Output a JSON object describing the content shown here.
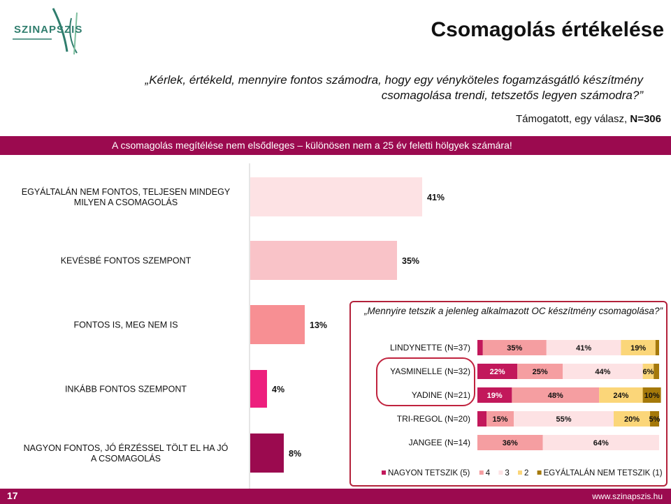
{
  "header": {
    "logo_text": "SZINAPSZIS",
    "title": "Csomagolás értékelése"
  },
  "question": {
    "line1": "„Kérlek, értékeld, mennyire fontos számodra, hogy egy vényköteles fogamzásgátló készítmény",
    "line2": "csomagolása trendi, tetszetős legyen számodra?”"
  },
  "support": {
    "prefix": "Támogatott, egy válasz,",
    "n": "N=306"
  },
  "banner": {
    "text": "A csomagolás megítélése nem elsődleges – különösen nem a 25 év feletti hölgyek számára!"
  },
  "chart_data": [
    {
      "type": "bar",
      "orientation": "horizontal",
      "categories": [
        "EGYÁLTALÁN NEM FONTOS, TELJESEN MINDEGY MILYEN A CSOMAGOLÁS",
        "KEVÉSBÉ FONTOS SZEMPONT",
        "FONTOS IS, MEG NEM IS",
        "INKÁBB FONTOS SZEMPONT",
        "NAGYON FONTOS, JÓ ÉRZÉSSEL TÖLT EL HA JÓ A CSOMAGOLÁS"
      ],
      "values": [
        41,
        35,
        13,
        4,
        8
      ],
      "labels": [
        "41%",
        "35%",
        "13%",
        "4%",
        "8%"
      ],
      "colors": [
        "#fde2e4",
        "#f9c3c8",
        "#f78f93",
        "#ed1f7d",
        "#9b0a4f"
      ],
      "xlim": [
        0,
        100
      ]
    },
    {
      "type": "bar",
      "orientation": "horizontal",
      "stacked": "percent",
      "title": "„Mennyire tetszik a jelenleg alkalmazott OC készítmény csomagolása?”",
      "categories": [
        "LINDYNETTE (N=37)",
        "YASMINELLE (N=32)",
        "YADINE (N=21)",
        "TRI-REGOL (N=20)",
        "JANGEE (N=14)"
      ],
      "series": [
        {
          "name": "NAGYON TETSZIK (5)",
          "color": "#c2185b",
          "values": [
            3,
            22,
            19,
            5,
            0
          ],
          "labels": [
            "",
            "22%",
            "19%",
            "",
            ""
          ]
        },
        {
          "name": "4",
          "color": "#f59ea1",
          "values": [
            35,
            25,
            48,
            15,
            36
          ],
          "labels": [
            "35%",
            "25%",
            "48%",
            "15%",
            "36%"
          ]
        },
        {
          "name": "3",
          "color": "#fde2e4",
          "values": [
            41,
            44,
            0,
            55,
            64
          ],
          "labels": [
            "41%",
            "44%",
            "",
            "55%",
            "64%"
          ]
        },
        {
          "name": "2",
          "color": "#fbd679",
          "values": [
            19,
            6,
            24,
            20,
            0
          ],
          "labels": [
            "19%",
            "6%",
            "24%",
            "20%",
            ""
          ]
        },
        {
          "name": "EGYÁLTALÁN NEM TETSZIK (1)",
          "color": "#a5790a",
          "values": [
            2,
            3,
            10,
            5,
            0
          ],
          "labels": [
            "",
            "",
            "10%",
            "5%",
            ""
          ]
        }
      ],
      "legend": "bottom"
    }
  ],
  "footer": {
    "page_number": "17",
    "site": "www.szinapszis.hu"
  }
}
